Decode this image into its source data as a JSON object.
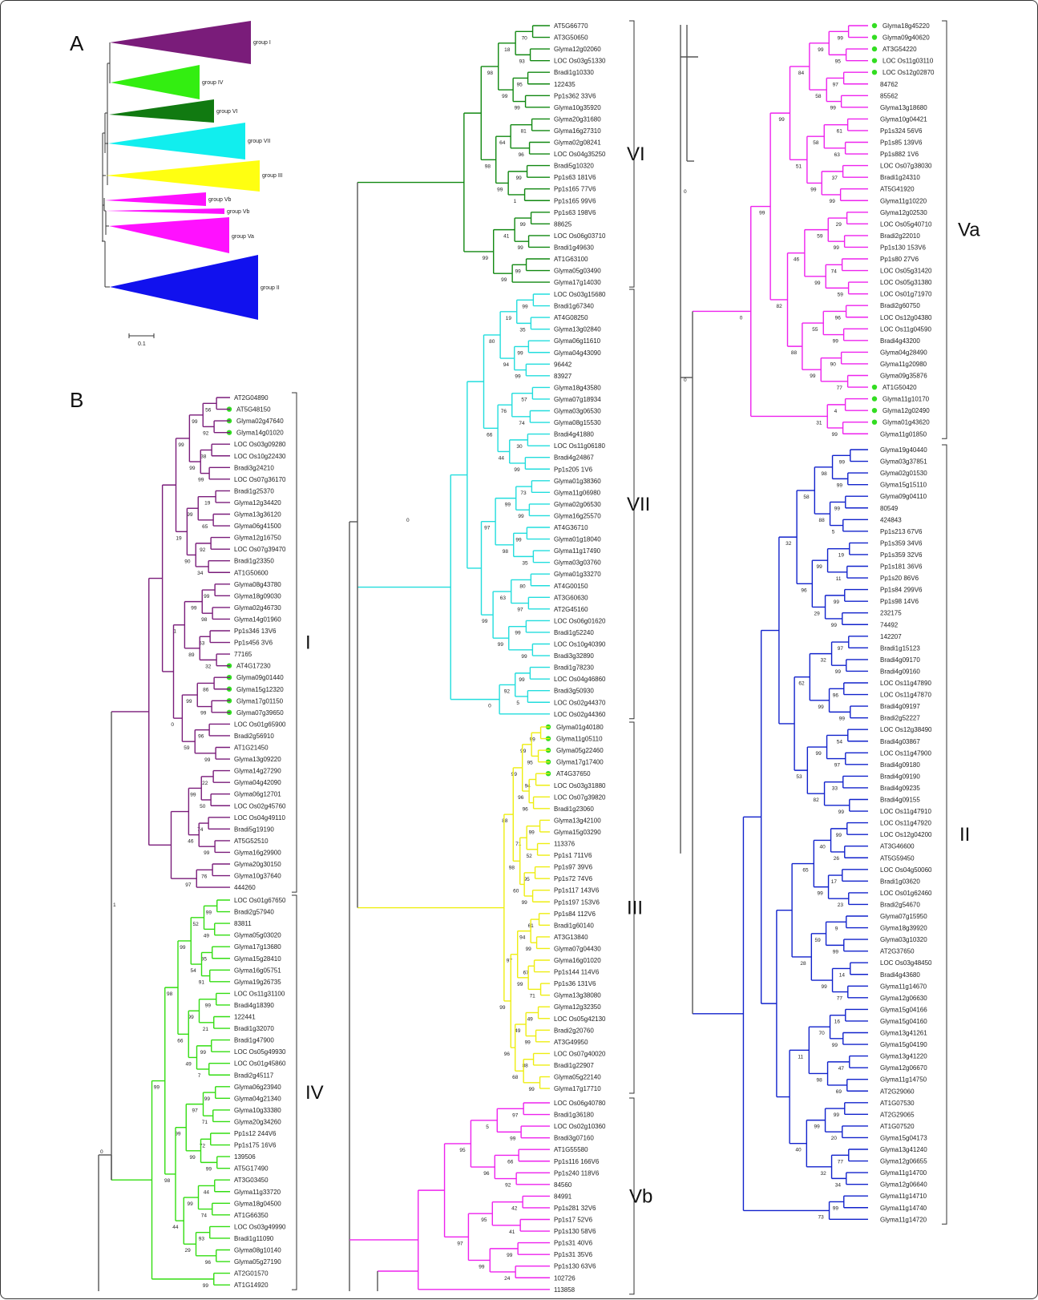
{
  "panels": {
    "a": "A",
    "b": "B"
  },
  "panel_a": {
    "groups": [
      {
        "label": "group I",
        "color": "#7a1c7a"
      },
      {
        "label": "group IV",
        "color": "#33ee11"
      },
      {
        "label": "group VI",
        "color": "#117a11"
      },
      {
        "label": "group VII",
        "color": "#11eeee"
      },
      {
        "label": "group III",
        "color": "#ffff11"
      },
      {
        "label": "group Vb",
        "color": "#ff11ff"
      },
      {
        "label": "group Vb",
        "color": "#ff11ff"
      },
      {
        "label": "group Va",
        "color": "#ff11ff"
      },
      {
        "label": "group II",
        "color": "#1111ee"
      }
    ],
    "scale_label": "0.1"
  },
  "colors": {
    "I": "#7a1c7a",
    "IV": "#33dd11",
    "VI": "#118811",
    "VII": "#22dddd",
    "III": "#eeee11",
    "V": "#ee22ee",
    "II": "#1122cc",
    "backbone": "#555555",
    "marker": "#33dd22"
  },
  "clades": {
    "I": {
      "label": "I",
      "leaves": [
        "AT2G04890",
        "AT5G48150",
        "Glyma02g47640",
        "Glyma14g01020",
        "LOC Os03g09280",
        "LOC Os10g22430",
        "Bradi3g24210",
        "LOC Os07g36170",
        "Bradi1g25370",
        "Glyma12g34420",
        "Glyma13g36120",
        "Glyma06g41500",
        "Glyma12g16750",
        "LOC Os07g39470",
        "Bradi1g23350",
        "AT1G50600",
        "Glyma08g43780",
        "Glyma18g09030",
        "Glyma02g46730",
        "Glyma14g01960",
        "Pp1s346 13V6",
        "Pp1s456 3V6",
        "77165",
        "AT4G17230",
        "Glyma09g01440",
        "Glyma15g12320",
        "Glyma17g01150",
        "Glyma07g39650",
        "LOC Os01g65900",
        "Bradi2g56910",
        "AT1G21450",
        "Glyma13g09220",
        "Glyma14g27290",
        "Glyma04g42090",
        "Glyma06g12701",
        "LOC Os02g45760",
        "LOC Os04g49110",
        "Bradi5g19190",
        "AT5G52510",
        "Glyma16g29900",
        "Glyma20g30150",
        "Glyma10g37640",
        "444260"
      ],
      "marked": [
        1,
        2,
        3,
        23,
        24,
        25,
        26,
        27
      ]
    },
    "IV": {
      "label": "IV",
      "leaves": [
        "LOC Os01g67650",
        "Bradi2g57940",
        "83811",
        "Glyma05g03020",
        "Glyma17g13680",
        "Glyma15g28410",
        "Glyma16g05751",
        "Glyma19g26735",
        "LOC Os11g31100",
        "Bradi4g18390",
        "122441",
        "Bradi1g32070",
        "Bradi1g47900",
        "LOC Os05g49930",
        "LOC Os01g45860",
        "Bradi2g45117",
        "Glyma06g23940",
        "Glyma04g21340",
        "Glyma10g33380",
        "Glyma20g34260",
        "Pp1s12 244V6",
        "Pp1s175 16V6",
        "139506",
        "AT5G17490",
        "AT3G03450",
        "Glyma11g33720",
        "Glyma18g04500",
        "AT1G66350",
        "LOC Os03g49990",
        "Bradi1g11090",
        "Glyma08g10140",
        "Glyma05g27190",
        "AT2G01570",
        "AT1G14920"
      ],
      "marked": []
    },
    "VI": {
      "label": "VI",
      "leaves": [
        "AT5G66770",
        "AT3G50650",
        "Glyma12g02060",
        "LOC Os03g51330",
        "Bradi1g10330",
        "122435",
        "Pp1s362 33V6",
        "Glyma10g35920",
        "Glyma20g31680",
        "Glyma16g27310",
        "Glyma02g08241",
        "LOC Os04g35250",
        "Bradi5g10320",
        "Pp1s63 181V6",
        "Pp1s165 77V6",
        "Pp1s165 99V6",
        "Pp1s63 198V6",
        "88625",
        "LOC Os06g03710",
        "Bradi1g49630",
        "AT1G63100",
        "Glyma05g03490",
        "Glyma17g14030"
      ],
      "marked": []
    },
    "VII": {
      "label": "VII",
      "leaves": [
        "LOC Os03g15680",
        "Bradi1g67340",
        "AT4G08250",
        "Glyma13g02840",
        "Glyma06g11610",
        "Glyma04g43090",
        "96442",
        "83927",
        "Glyma18g43580",
        "Glyma07g18934",
        "Glyma03g06530",
        "Glyma08g15530",
        "Bradi4g41880",
        "LOC Os11g06180",
        "Bradi4g24867",
        "Pp1s205 1V6",
        "Glyma01g38360",
        "Glyma11g06980",
        "Glyma02g06530",
        "Glyma16g25570",
        "AT4G36710",
        "Glyma01g18040",
        "Glyma11g17490",
        "Glyma03g03760",
        "Glyma01g33270",
        "AT4G00150",
        "AT3G60630",
        "AT2G45160",
        "LOC Os06g01620",
        "Bradi1g52240",
        "LOC Os10g40390",
        "Bradi3g32890",
        "Bradi1g78230",
        "LOC Os04g46860",
        "Bradi3g50930",
        "LOC Os02g44370",
        "LOC Os02g44360"
      ],
      "marked": []
    },
    "III": {
      "label": "III",
      "leaves": [
        "Glyma01g40180",
        "Glyma11g05110",
        "Glyma05g22460",
        "Glyma17g17400",
        "AT4G37650",
        "LOC Os03g31880",
        "LOC Os07g39820",
        "Bradi1g23060",
        "Glyma13g42100",
        "Glyma15g03290",
        "113376",
        "Pp1s1 711V6",
        "Pp1s97 39V6",
        "Pp1s72 74V6",
        "Pp1s117 143V6",
        "Pp1s197 153V6",
        "Pp1s84 112V6",
        "Bradi1g60140",
        "AT3G13840",
        "Glyma07g04430",
        "Glyma16g01020",
        "Pp1s144 114V6",
        "Pp1s36 131V6",
        "Glyma13g38080",
        "Glyma12g32350",
        "LOC Os05g42130",
        "Bradi2g20760",
        "AT3G49950",
        "LOC Os07g40020",
        "Bradi1g22907",
        "Glyma05g22140",
        "Glyma17g17710"
      ],
      "marked": [
        0,
        1,
        2,
        3,
        4
      ]
    },
    "Vb": {
      "label": "Vb",
      "leaves": [
        "LOC Os06g40780",
        "Bradi1g36180",
        "LOC Os02g10360",
        "Bradi3g07160",
        "AT1G55580",
        "Pp1s116 166V6",
        "Pp1s240 118V6",
        "84560",
        "84991",
        "Pp1s281 32V6",
        "Pp1s17 52V6",
        "Pp1s130 58V6",
        "Pp1s31 40V6",
        "Pp1s31 35V6",
        "Pp1s130 63V6",
        "102726",
        "113858"
      ],
      "marked": []
    },
    "Va": {
      "label": "Va",
      "leaves": [
        "Glyma18g45220",
        "Glyma09g40620",
        "AT3G54220",
        "LOC Os11g03110",
        "LOC Os12g02870",
        "84762",
        "85562",
        "Glyma13g18680",
        "Glyma10g04421",
        "Pp1s324 56V6",
        "Pp1s85 139V6",
        "Pp1s882 1V6",
        "LOC Os07g38030",
        "Bradi1g24310",
        "AT5G41920",
        "Glyma11g10220",
        "Glyma12g02530",
        "LOC Os05g40710",
        "Bradi2g22010",
        "Pp1s130 153V6",
        "Pp1s80 27V6",
        "LOC Os05g31420",
        "LOC Os05g31380",
        "LOC Os01g71970",
        "Bradi2g60750",
        "LOC Os12g04380",
        "LOC Os11g04590",
        "Bradi4g43200",
        "Glyma04g28490",
        "Glyma11g20980",
        "Glyma09g35876",
        "AT1G50420",
        "Glyma11g10170",
        "Glyma12g02490",
        "Glyma01g43620",
        "Glyma11g01850"
      ],
      "marked": [
        0,
        1,
        2,
        3,
        4,
        31,
        32,
        33,
        34
      ]
    },
    "II": {
      "label": "II",
      "leaves": [
        "Glyma19g40440",
        "Glyma03g37851",
        "Glyma02g01530",
        "Glyma15g15110",
        "Glyma09g04110",
        "80549",
        "424843",
        "Pp1s213 67V6",
        "Pp1s359 34V6",
        "Pp1s359 32V6",
        "Pp1s181 36V6",
        "Pp1s20 86V6",
        "Pp1s84 299V6",
        "Pp1s98 14V6",
        "232175",
        "74492",
        "142207",
        "Bradi1g15123",
        "Bradi4g09170",
        "Bradi4g09160",
        "LOC Os11g47890",
        "LOC Os11g47870",
        "Bradi4g09197",
        "Bradi2g52227",
        "LOC Os12g38490",
        "Bradi4g03867",
        "LOC Os11g47900",
        "Bradi4g09180",
        "Bradi4g09190",
        "Bradi4g09235",
        "Bradi4g09155",
        "LOC Os11g47910",
        "LOC Os11g47920",
        "LOC Os12g04200",
        "AT3G46600",
        "AT5G59450",
        "LOC Os04g50060",
        "Bradi1g03620",
        "LOC Os01g62460",
        "Bradi2g54670",
        "Glyma07g15950",
        "Glyma18g39920",
        "Glyma03g10320",
        "AT2G37650",
        "LOC Os03g48450",
        "Bradi4g43680",
        "Glyma11g14670",
        "Glyma12g06630",
        "Glyma15g04166",
        "Glyma15g04160",
        "Glyma13g41261",
        "Glyma15g04190",
        "Glyma13g41220",
        "Glyma12g06670",
        "Glyma11g14750",
        "AT2G29060",
        "AT1G07530",
        "AT2G29065",
        "AT1G07520",
        "Glyma15g04173",
        "Glyma13g41240",
        "Glyma12g06655",
        "Glyma11g14700",
        "Glyma12g06640",
        "Glyma11g14710",
        "Glyma11g14740",
        "Glyma11g14720"
      ],
      "marked": []
    }
  },
  "bootstrap": {
    "I": [
      "56",
      "92",
      "38",
      "99",
      "19",
      "65",
      "92",
      "34",
      "99",
      "98",
      "53",
      "32",
      "86",
      "99",
      "96",
      "99",
      "22",
      "50",
      "74",
      "99",
      "76",
      "99",
      "99",
      "99",
      "90",
      "99",
      "89",
      "99",
      "59",
      "99",
      "46",
      "97",
      "99",
      "19",
      "1",
      "0"
    ],
    "IV": [
      "99",
      "49",
      "95",
      "91",
      "99",
      "21",
      "99",
      "7",
      "99",
      "71",
      "72",
      "99",
      "44",
      "74",
      "93",
      "96",
      "99",
      "52",
      "54",
      "99",
      "49",
      "97",
      "99",
      "99",
      "29",
      "99",
      "66",
      "99",
      "44",
      "98",
      "98",
      "99"
    ],
    "VI": [
      "70",
      "93",
      "95",
      "99",
      "81",
      "96",
      "99",
      "1",
      "99",
      "99",
      "99",
      "18",
      "99",
      "64",
      "99",
      "41",
      "99",
      "98",
      "98",
      "99"
    ],
    "VII": [
      "99",
      "35",
      "99",
      "99",
      "57",
      "74",
      "30",
      "99",
      "73",
      "99",
      "99",
      "35",
      "80",
      "97",
      "99",
      "99",
      "99",
      "5",
      "19",
      "94",
      "76",
      "44",
      "99",
      "98",
      "63",
      "99",
      "92",
      "80",
      "66",
      "97",
      "99",
      "0"
    ],
    "III": [
      "99",
      "95",
      "94",
      "96",
      "99",
      "52",
      "95",
      "99",
      "61",
      "99",
      "67",
      "71",
      "49",
      "99",
      "88",
      "99",
      "99",
      "96",
      "71",
      "60",
      "94",
      "99",
      "49",
      "68",
      "99",
      "98",
      "97",
      "96",
      "88",
      "99"
    ],
    "Vb": [
      "97",
      "99",
      "66",
      "92",
      "42",
      "41",
      "99",
      "24",
      "5",
      "96",
      "95",
      "99",
      "95",
      "97"
    ],
    "Va": [
      "99",
      "95",
      "97",
      "99",
      "61",
      "63",
      "37",
      "99",
      "29",
      "99",
      "74",
      "59",
      "96",
      "99",
      "90",
      "77",
      "4",
      "99",
      "99",
      "58",
      "58",
      "99",
      "59",
      "99",
      "55",
      "99",
      "31",
      "84",
      "51",
      "46",
      "88",
      "99",
      "82",
      "99",
      "0"
    ],
    "II": [
      "99",
      "99",
      "99",
      "5",
      "19",
      "11",
      "99",
      "99",
      "97",
      "99",
      "96",
      "99",
      "54",
      "97",
      "33",
      "99",
      "99",
      "26",
      "17",
      "23",
      "9",
      "99",
      "14",
      "77",
      "16",
      "99",
      "47",
      "69",
      "99",
      "20",
      "77",
      "34",
      "99",
      "98",
      "88",
      "99",
      "29",
      "32",
      "99",
      "99",
      "82",
      "40",
      "99",
      "59",
      "99",
      "70",
      "98",
      "99",
      "32",
      "73",
      "58",
      "96",
      "62",
      "53",
      "65",
      "28",
      "11",
      "40",
      "32"
    ]
  }
}
